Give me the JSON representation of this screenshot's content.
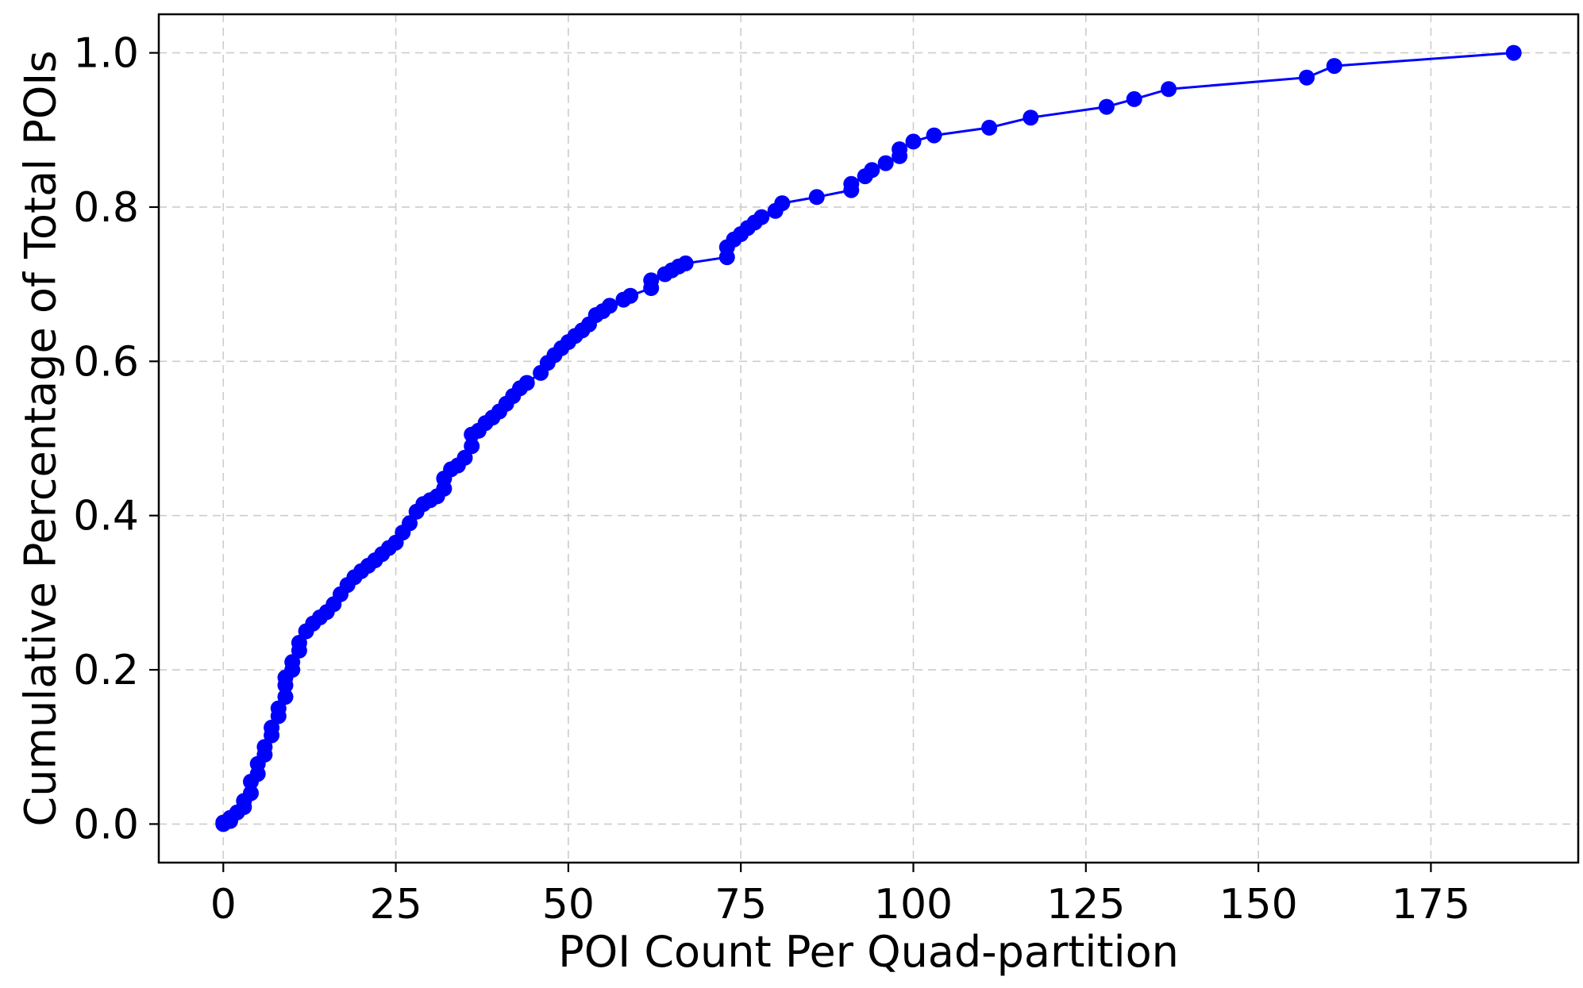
{
  "chart_data": {
    "type": "line",
    "title": "",
    "xlabel": "POI Count Per Quad-partition",
    "ylabel": "Cumulative Percentage of Total POIs",
    "xlim": [
      -9.35,
      196.35
    ],
    "ylim": [
      -0.05,
      1.05
    ],
    "x_ticks": [
      0,
      25,
      50,
      75,
      100,
      125,
      150,
      175
    ],
    "y_ticks": [
      0.0,
      0.2,
      0.4,
      0.6,
      0.8,
      1.0
    ],
    "x_tick_labels": [
      "0",
      "25",
      "50",
      "75",
      "100",
      "125",
      "150",
      "175"
    ],
    "y_tick_labels": [
      "0.0",
      "0.2",
      "0.4",
      "0.6",
      "0.8",
      "1.0"
    ],
    "grid": true,
    "marker": "circle",
    "colors": {
      "series": "#0000ff",
      "grid": "#cccccc",
      "axes": "#000000"
    },
    "series": [
      {
        "x": [
          0,
          0,
          1,
          1,
          2,
          3,
          3,
          4,
          4,
          5,
          5,
          6,
          6,
          7,
          7,
          8,
          8,
          9,
          9,
          9,
          10,
          10,
          11,
          11,
          12,
          13,
          14,
          15,
          16,
          17,
          18,
          19,
          20,
          21,
          22,
          23,
          24,
          25,
          26,
          27,
          28,
          29,
          30,
          31,
          32,
          32,
          33,
          34,
          35,
          36,
          36,
          37,
          38,
          39,
          40,
          41,
          42,
          43,
          44,
          46,
          47,
          48,
          49,
          50,
          51,
          52,
          53,
          54,
          55,
          56,
          58,
          59,
          62,
          62,
          64,
          65,
          66,
          67,
          73,
          73,
          74,
          75,
          76,
          77,
          78,
          80,
          81,
          86,
          91,
          91,
          93,
          94,
          96,
          98,
          98,
          100,
          103,
          111,
          117,
          128,
          132,
          137,
          157,
          161,
          187
        ],
        "y": [
          0.0,
          0.002,
          0.004,
          0.008,
          0.015,
          0.022,
          0.03,
          0.04,
          0.055,
          0.065,
          0.078,
          0.09,
          0.1,
          0.115,
          0.125,
          0.14,
          0.15,
          0.165,
          0.18,
          0.19,
          0.2,
          0.21,
          0.225,
          0.235,
          0.25,
          0.26,
          0.268,
          0.275,
          0.285,
          0.298,
          0.31,
          0.32,
          0.328,
          0.335,
          0.342,
          0.35,
          0.358,
          0.365,
          0.378,
          0.39,
          0.405,
          0.415,
          0.42,
          0.425,
          0.435,
          0.448,
          0.46,
          0.465,
          0.475,
          0.49,
          0.505,
          0.51,
          0.52,
          0.527,
          0.535,
          0.545,
          0.555,
          0.565,
          0.572,
          0.585,
          0.598,
          0.608,
          0.617,
          0.625,
          0.633,
          0.64,
          0.648,
          0.66,
          0.665,
          0.672,
          0.68,
          0.685,
          0.695,
          0.705,
          0.713,
          0.718,
          0.723,
          0.727,
          0.735,
          0.748,
          0.758,
          0.765,
          0.773,
          0.78,
          0.787,
          0.795,
          0.805,
          0.813,
          0.822,
          0.83,
          0.84,
          0.848,
          0.857,
          0.866,
          0.875,
          0.885,
          0.893,
          0.903,
          0.916,
          0.93,
          0.94,
          0.953,
          0.968,
          0.983,
          1.0
        ]
      }
    ]
  }
}
